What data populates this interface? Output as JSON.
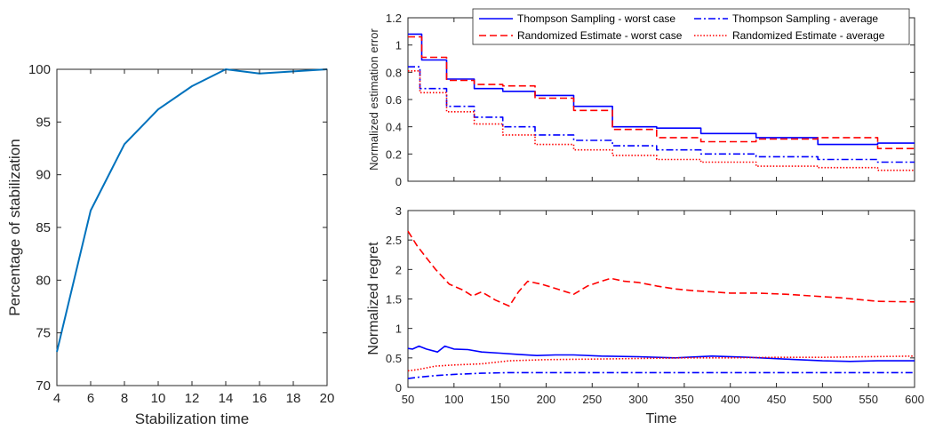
{
  "chart_data": [
    {
      "type": "line",
      "xlabel": "Stabilization time",
      "ylabel": "Percentage of stabilization",
      "xlim": [
        4,
        20
      ],
      "ylim": [
        70,
        100
      ],
      "xticks": [
        "4",
        "6",
        "8",
        "10",
        "12",
        "14",
        "16",
        "18",
        "20"
      ],
      "yticks": [
        "70",
        "75",
        "80",
        "85",
        "90",
        "95",
        "100"
      ],
      "grid": false,
      "series": [
        {
          "color": "#0072BD",
          "x": [
            4,
            6,
            8,
            10,
            12,
            14,
            16,
            18,
            20
          ],
          "y": [
            73.2,
            86.6,
            92.9,
            96.2,
            98.4,
            100.0,
            99.6,
            99.8,
            100.0
          ]
        }
      ]
    },
    {
      "type": "line",
      "xlabel": "",
      "ylabel": "Normalized estimation error",
      "xlim": [
        50,
        600
      ],
      "ylim": [
        0,
        1.2
      ],
      "yticks": [
        "0",
        "0.2",
        "0.4",
        "0.6",
        "0.8",
        "1",
        "1.2"
      ],
      "legend": "top-right",
      "series": [
        {
          "name": "Thompson Sampling - worst case",
          "color": "#0000ff",
          "style": "solid",
          "x": [
            50,
            65,
            65,
            92,
            92,
            122,
            122,
            153,
            153,
            188,
            188,
            230,
            230,
            272,
            272,
            320,
            320,
            368,
            368,
            428,
            428,
            495,
            495,
            560,
            560,
            600
          ],
          "y": [
            1.08,
            1.08,
            0.89,
            0.89,
            0.75,
            0.75,
            0.68,
            0.68,
            0.66,
            0.66,
            0.63,
            0.63,
            0.55,
            0.55,
            0.4,
            0.4,
            0.39,
            0.39,
            0.35,
            0.35,
            0.32,
            0.32,
            0.27,
            0.27,
            0.28,
            0.28
          ]
        },
        {
          "name": "Thompson Sampling - average",
          "color": "#0000ff",
          "style": "dashdot",
          "x": [
            50,
            63,
            63,
            92,
            92,
            122,
            122,
            153,
            153,
            188,
            188,
            230,
            230,
            272,
            272,
            320,
            320,
            368,
            368,
            428,
            428,
            495,
            495,
            560,
            560,
            600
          ],
          "y": [
            0.84,
            0.84,
            0.68,
            0.68,
            0.55,
            0.55,
            0.47,
            0.47,
            0.4,
            0.4,
            0.34,
            0.34,
            0.3,
            0.3,
            0.26,
            0.26,
            0.23,
            0.23,
            0.2,
            0.2,
            0.18,
            0.18,
            0.16,
            0.16,
            0.14,
            0.14
          ]
        },
        {
          "name": "Randomized Estimate - worst case",
          "color": "#ff0000",
          "style": "dashed",
          "x": [
            50,
            65,
            65,
            92,
            92,
            122,
            122,
            153,
            153,
            188,
            188,
            230,
            230,
            272,
            272,
            320,
            320,
            368,
            368,
            428,
            428,
            495,
            495,
            560,
            560,
            600
          ],
          "y": [
            1.06,
            1.06,
            0.91,
            0.91,
            0.74,
            0.74,
            0.71,
            0.71,
            0.7,
            0.7,
            0.61,
            0.61,
            0.52,
            0.52,
            0.38,
            0.38,
            0.32,
            0.32,
            0.29,
            0.29,
            0.31,
            0.31,
            0.32,
            0.32,
            0.24,
            0.24
          ]
        },
        {
          "name": "Randomized Estimate - average",
          "color": "#ff0000",
          "style": "dotted",
          "x": [
            50,
            63,
            63,
            92,
            92,
            122,
            122,
            153,
            153,
            188,
            188,
            230,
            230,
            272,
            272,
            320,
            320,
            368,
            368,
            428,
            428,
            495,
            495,
            560,
            560,
            600
          ],
          "y": [
            0.81,
            0.81,
            0.65,
            0.65,
            0.51,
            0.51,
            0.42,
            0.42,
            0.34,
            0.34,
            0.27,
            0.27,
            0.23,
            0.23,
            0.19,
            0.19,
            0.16,
            0.16,
            0.14,
            0.14,
            0.11,
            0.11,
            0.1,
            0.1,
            0.08,
            0.08
          ]
        }
      ]
    },
    {
      "type": "line",
      "xlabel": "Time",
      "ylabel": "Normalized regret",
      "xlim": [
        50,
        600
      ],
      "ylim": [
        0,
        3
      ],
      "xticks": [
        "50",
        "100",
        "150",
        "200",
        "250",
        "300",
        "350",
        "400",
        "450",
        "500",
        "550",
        "600"
      ],
      "yticks": [
        "0",
        "0.5",
        "1",
        "1.5",
        "2",
        "2.5",
        "3"
      ],
      "series": [
        {
          "color": "#ff0000",
          "style": "dashed",
          "x": [
            50,
            60,
            70,
            80,
            95,
            110,
            120,
            130,
            145,
            160,
            170,
            180,
            195,
            210,
            230,
            245,
            260,
            270,
            285,
            300,
            320,
            340,
            360,
            380,
            400,
            430,
            460,
            490,
            520,
            560,
            600
          ],
          "y": [
            2.65,
            2.4,
            2.2,
            2.0,
            1.75,
            1.65,
            1.55,
            1.62,
            1.48,
            1.38,
            1.62,
            1.8,
            1.75,
            1.68,
            1.58,
            1.72,
            1.8,
            1.85,
            1.8,
            1.78,
            1.72,
            1.67,
            1.64,
            1.62,
            1.6,
            1.6,
            1.58,
            1.55,
            1.52,
            1.46,
            1.45
          ]
        },
        {
          "color": "#0000ff",
          "style": "solid",
          "x": [
            50,
            55,
            62,
            70,
            82,
            90,
            100,
            115,
            130,
            150,
            170,
            190,
            210,
            230,
            260,
            300,
            340,
            380,
            420,
            460,
            500,
            530,
            560,
            600
          ],
          "y": [
            0.66,
            0.65,
            0.7,
            0.65,
            0.6,
            0.7,
            0.65,
            0.64,
            0.6,
            0.58,
            0.56,
            0.54,
            0.55,
            0.55,
            0.53,
            0.52,
            0.5,
            0.53,
            0.51,
            0.48,
            0.45,
            0.44,
            0.45,
            0.45
          ]
        },
        {
          "color": "#ff0000",
          "style": "dotted",
          "x": [
            50,
            60,
            80,
            100,
            130,
            160,
            200,
            250,
            300,
            350,
            400,
            450,
            500,
            550,
            600
          ],
          "y": [
            0.28,
            0.3,
            0.36,
            0.38,
            0.4,
            0.45,
            0.47,
            0.48,
            0.49,
            0.5,
            0.5,
            0.51,
            0.51,
            0.52,
            0.53
          ]
        },
        {
          "color": "#0000ff",
          "style": "dashdot",
          "x": [
            50,
            60,
            80,
            100,
            130,
            160,
            200,
            250,
            300,
            400,
            500,
            600
          ],
          "y": [
            0.15,
            0.17,
            0.2,
            0.22,
            0.24,
            0.25,
            0.25,
            0.25,
            0.25,
            0.25,
            0.25,
            0.25
          ]
        }
      ]
    }
  ]
}
